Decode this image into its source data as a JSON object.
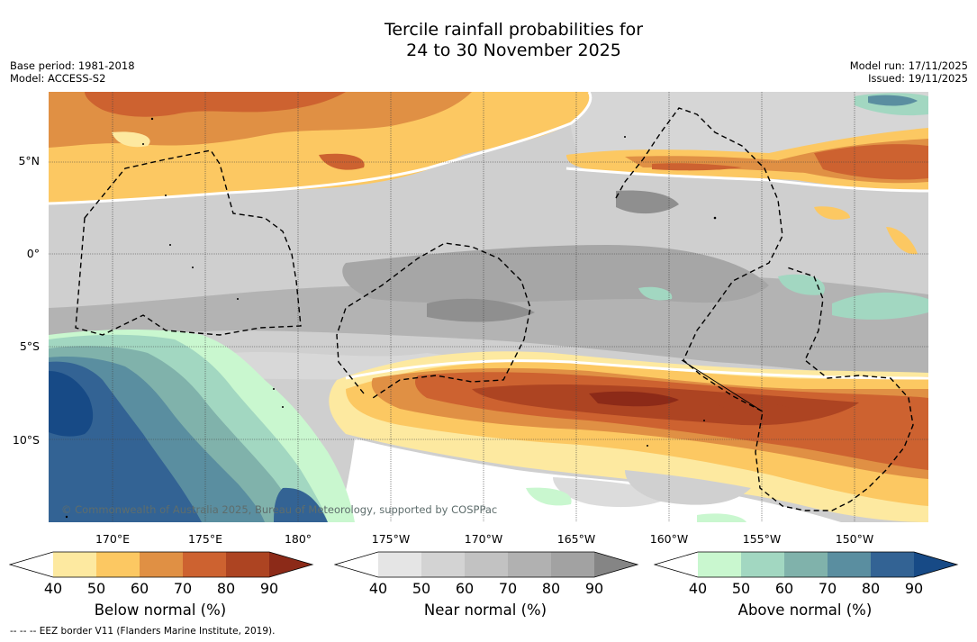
{
  "title": {
    "line1": "Tercile rainfall probabilities for",
    "line2": "24 to 30 November 2025"
  },
  "meta": {
    "base_period": "Base period: 1981-2018",
    "model": "Model: ACCESS-S2",
    "model_run": "Model run: 17/11/2025",
    "issued": "Issued: 19/11/2025"
  },
  "axes": {
    "latitude_labels": [
      "5°N",
      "0°",
      "5°S",
      "10°S"
    ],
    "longitude_labels": [
      "170°E",
      "175°E",
      "180°",
      "175°W",
      "170°W",
      "165°W",
      "160°W",
      "155°W",
      "150°W"
    ]
  },
  "copyright": "© Commonwealth of Australia 2025, Bureau of Meteorology, supported by COSPPac",
  "footnote": "--  --  -- EEZ border V11 (Flanders Marine Institute, 2019).",
  "colorbars": {
    "below": {
      "title": "Below normal (%)",
      "ticks": [
        "40",
        "50",
        "60",
        "70",
        "80",
        "90"
      ],
      "colors": [
        "#ffffff",
        "#fde9a0",
        "#fcc862",
        "#e09044",
        "#cd6230",
        "#ad4422",
        "#8c2a18"
      ]
    },
    "near": {
      "title": "Near normal (%)",
      "ticks": [
        "40",
        "50",
        "60",
        "70",
        "80",
        "90"
      ],
      "colors": [
        "#ffffff",
        "#e5e5e5",
        "#d3d3d3",
        "#c2c2c2",
        "#b1b1b1",
        "#a2a2a2",
        "#858585"
      ]
    },
    "above": {
      "title": "Above normal (%)",
      "ticks": [
        "40",
        "50",
        "60",
        "70",
        "80",
        "90"
      ],
      "colors": [
        "#ffffff",
        "#c9f7cf",
        "#a2d7c1",
        "#80b2ab",
        "#5a8ea0",
        "#336394",
        "#174a86"
      ]
    }
  }
}
